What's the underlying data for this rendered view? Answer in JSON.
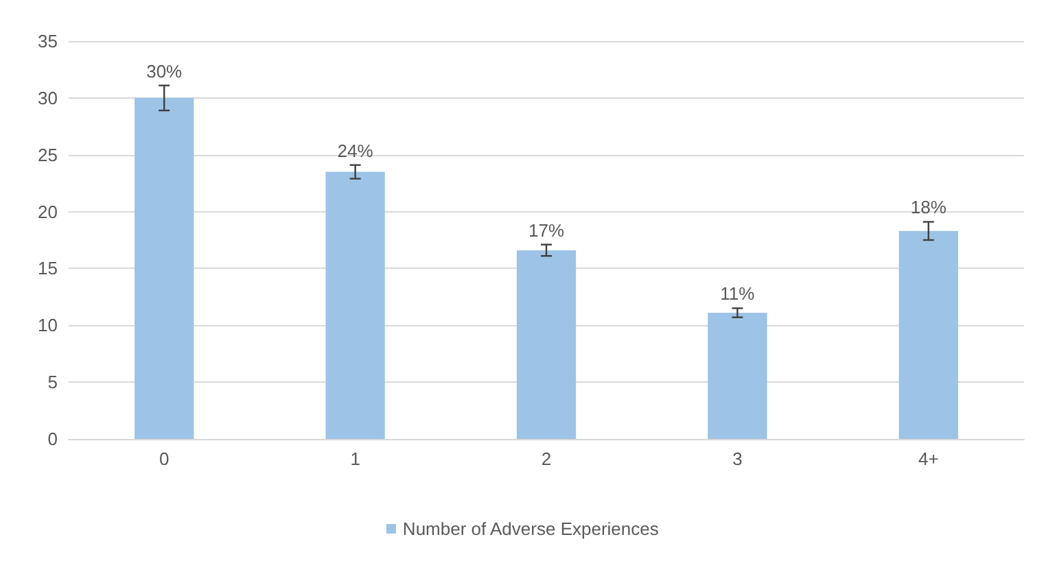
{
  "chart_data": {
    "type": "bar",
    "categories": [
      "0",
      "1",
      "2",
      "3",
      "4+"
    ],
    "series": [
      {
        "name": "Number of Adverse Experiences",
        "color": "#9dc3e6",
        "values": [
          30.0,
          23.5,
          16.6,
          11.1,
          18.3
        ],
        "errors": [
          1.1,
          0.6,
          0.5,
          0.4,
          0.8
        ],
        "value_labels": [
          "30%",
          "24%",
          "17%",
          "11%",
          "18%"
        ]
      }
    ],
    "ylim": [
      0,
      35
    ],
    "yticks": [
      0,
      5,
      10,
      15,
      20,
      25,
      30,
      35
    ],
    "grid": "y",
    "legend": "bottom"
  }
}
